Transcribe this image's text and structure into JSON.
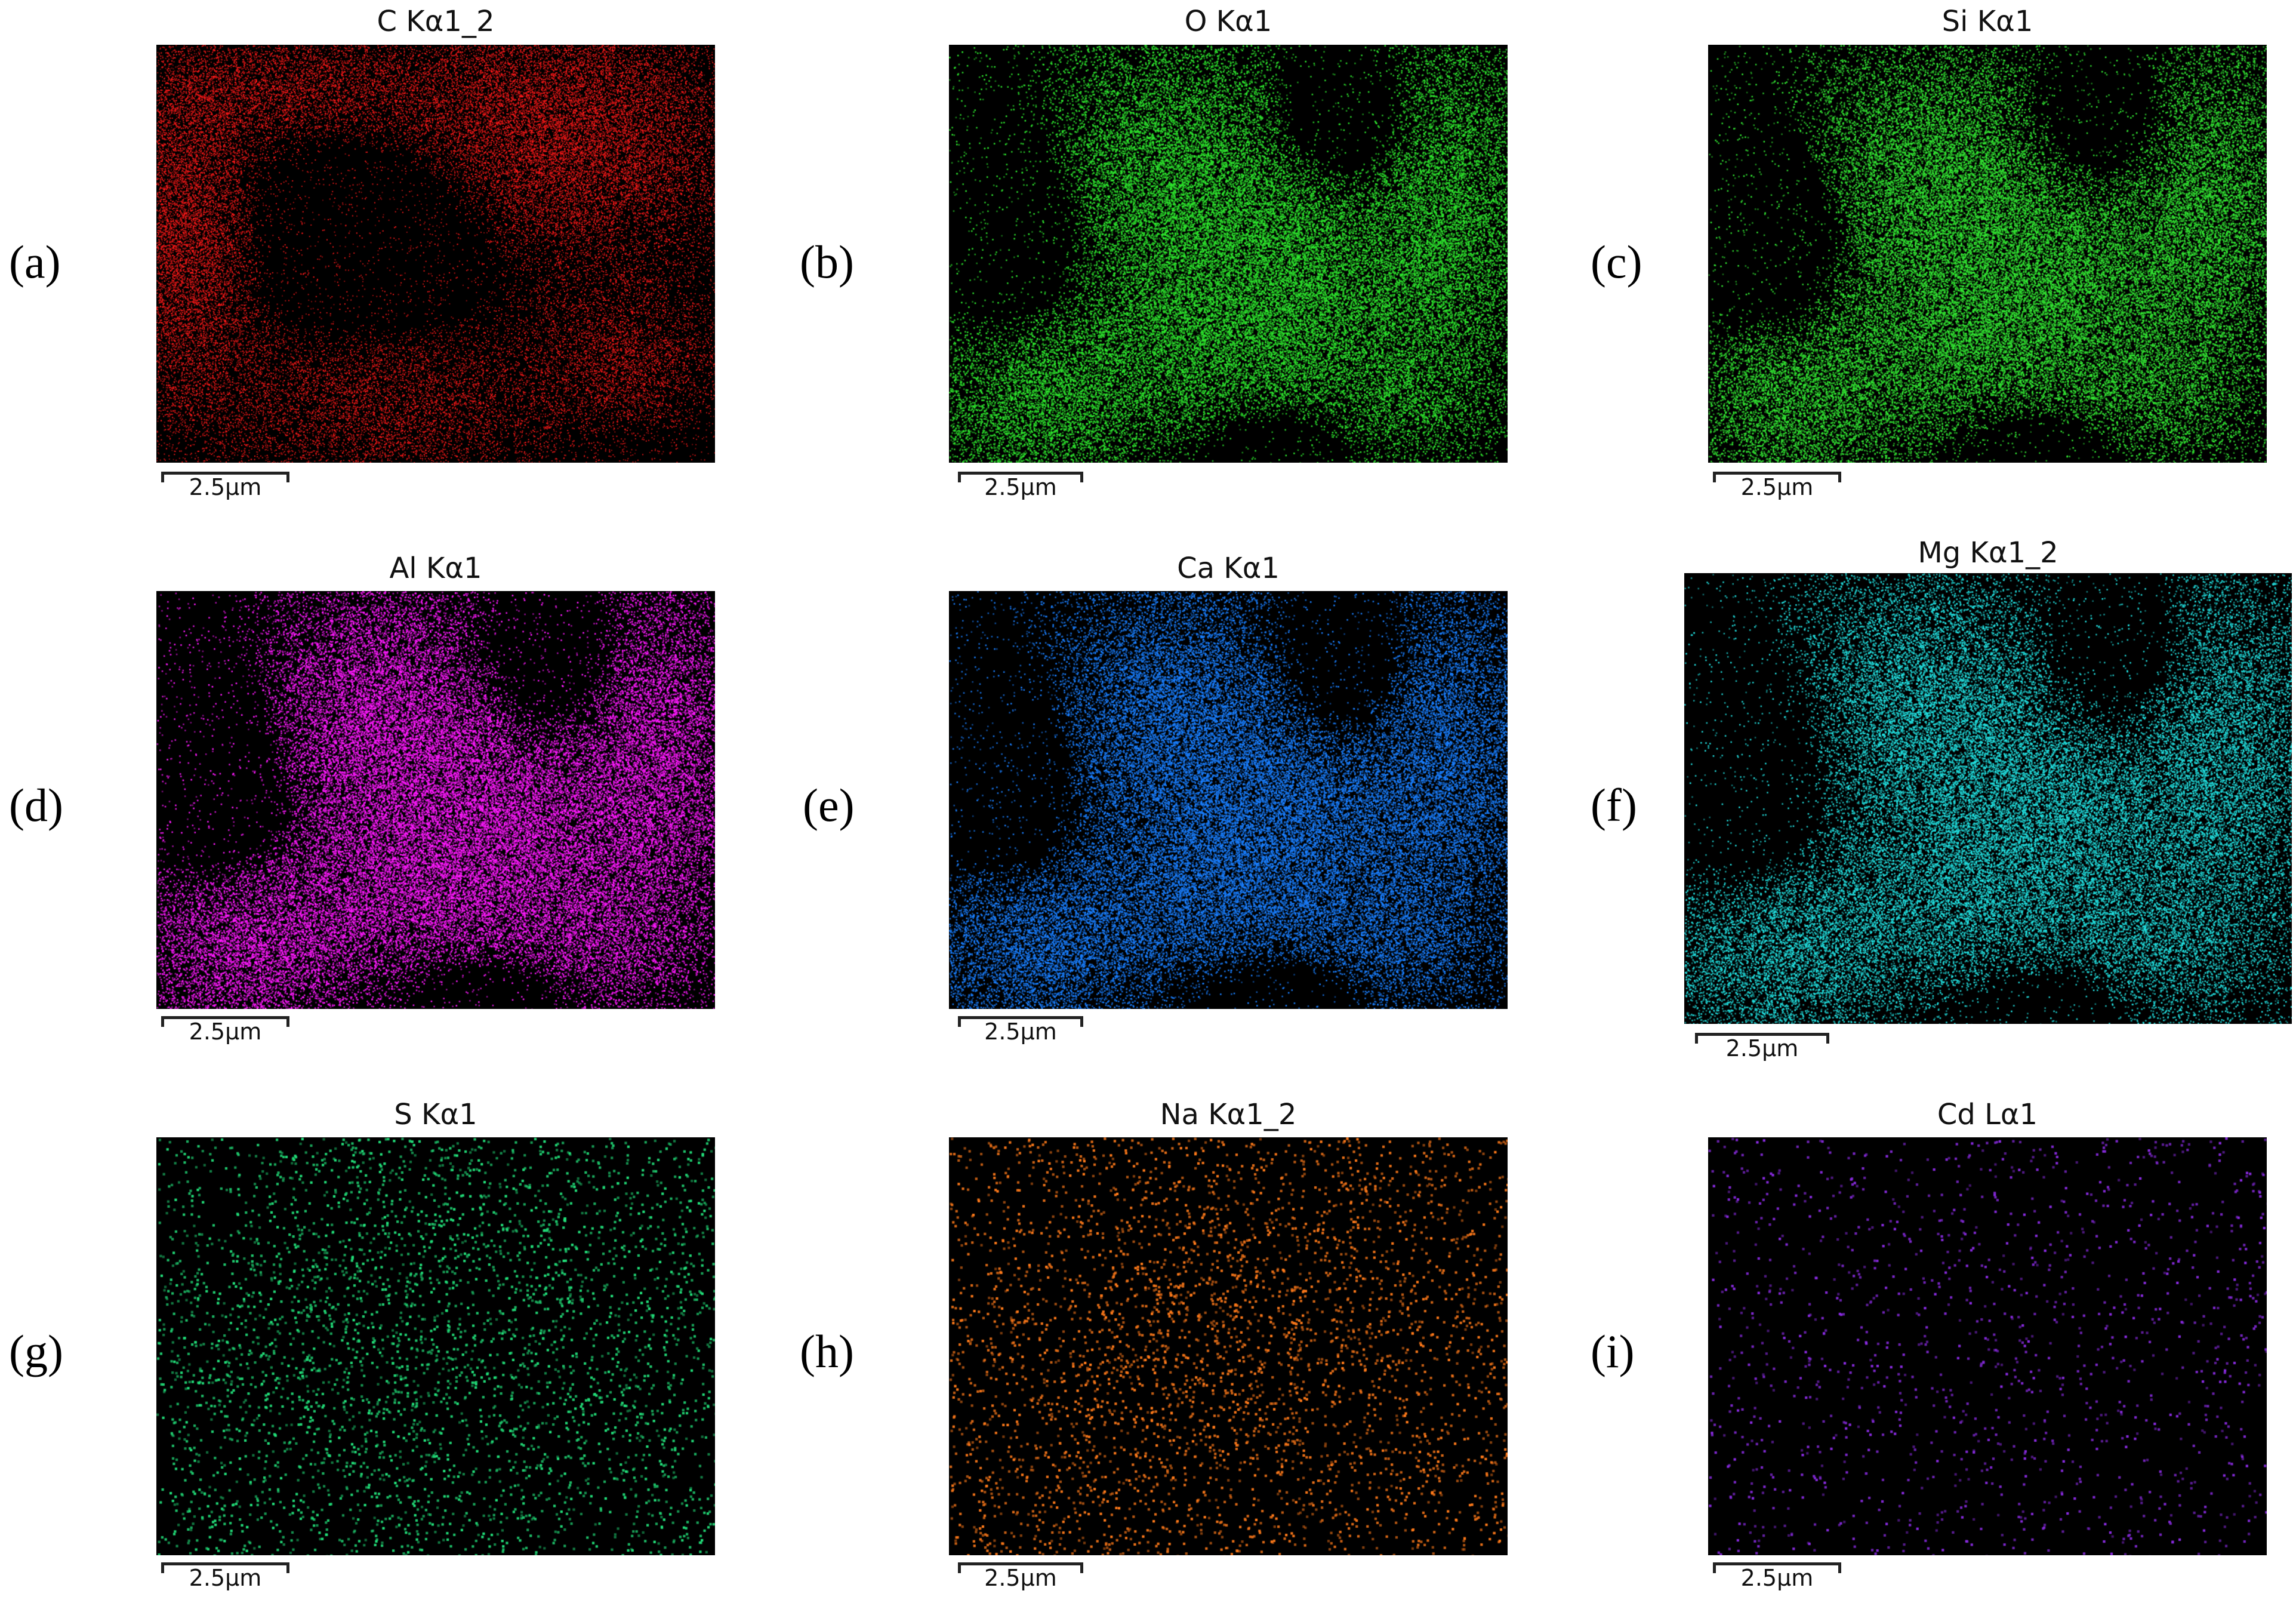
{
  "figure": {
    "panels": [
      {
        "letter": "(a)",
        "title": "C Kα1_2",
        "color": "#ff1a1a",
        "scale_label": "2.5µm",
        "pattern": "c"
      },
      {
        "letter": "(b)",
        "title": "O Kα1",
        "color": "#2ee62e",
        "scale_label": "2.5µm",
        "pattern": "main"
      },
      {
        "letter": "(c)",
        "title": "Si Kα1",
        "color": "#33e633",
        "scale_label": "2.5µm",
        "pattern": "main"
      },
      {
        "letter": "(d)",
        "title": "Al Kα1",
        "color": "#ff1aff",
        "scale_label": "2.5µm",
        "pattern": "main"
      },
      {
        "letter": "(e)",
        "title": "Ca Kα1",
        "color": "#1a7fff",
        "scale_label": "2.5µm",
        "pattern": "main"
      },
      {
        "letter": "(f)",
        "title": "Mg Kα1_2",
        "color": "#22e0e0",
        "scale_label": "2.5µm",
        "pattern": "main"
      },
      {
        "letter": "(g)",
        "title": "S Kα1",
        "color": "#22e07a",
        "scale_label": "2.5µm",
        "pattern": "sparse"
      },
      {
        "letter": "(h)",
        "title": "Na Kα1_2",
        "color": "#ff7a1a",
        "scale_label": "2.5µm",
        "pattern": "sparse"
      },
      {
        "letter": "(i)",
        "title": "Cd Lα1",
        "color": "#8a2be2",
        "scale_label": "2.5µm",
        "pattern": "verysparse"
      }
    ]
  }
}
